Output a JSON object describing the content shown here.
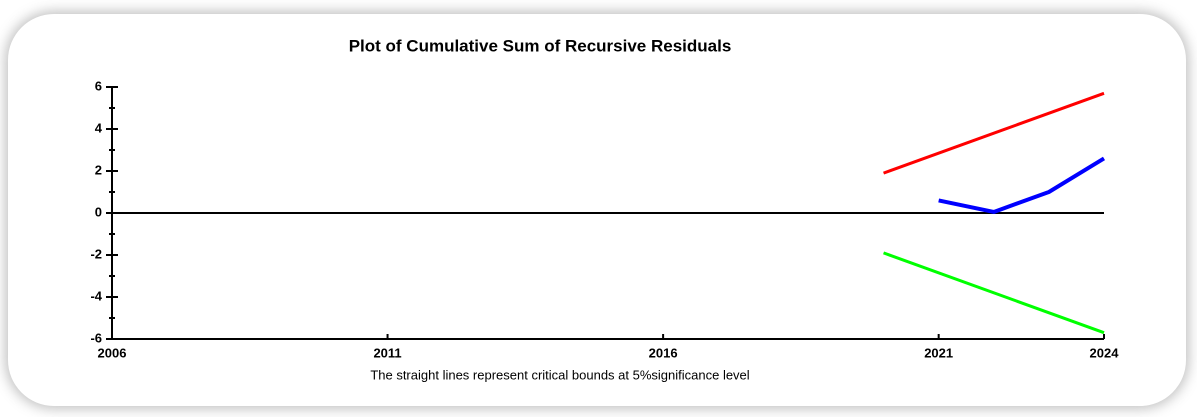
{
  "chart_data": {
    "type": "line",
    "title": "Plot of Cumulative Sum of Recursive Residuals",
    "caption": "The straight lines represent critical bounds at 5%significance level",
    "series": [
      {
        "color": "#ff0000",
        "x": [
          2020,
          2024
        ],
        "values": [
          1.9,
          5.7
        ]
      },
      {
        "color": "#00ff00",
        "x": [
          2020,
          2024
        ],
        "values": [
          -1.9,
          -5.7
        ]
      },
      {
        "color": "#0000ff",
        "x": [
          2021,
          2022,
          2023,
          2024
        ],
        "values": [
          0.6,
          0.05,
          1.0,
          2.6
        ]
      }
    ],
    "xlim": [
      2006,
      2024
    ],
    "xticks": [
      2006,
      2011,
      2016,
      2021,
      2024
    ],
    "ylim": [
      -6,
      6
    ],
    "yticks": [
      -6,
      -4,
      -2,
      0,
      2,
      4,
      6
    ],
    "yticks_minor": [
      -5,
      -3,
      -1,
      1,
      3,
      5
    ],
    "zero_line": true
  }
}
